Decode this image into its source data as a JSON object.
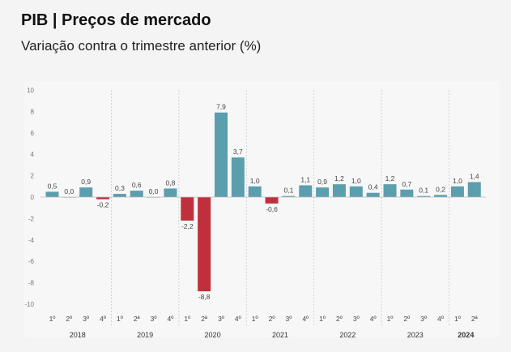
{
  "header": {
    "title": "PIB | Preços de mercado",
    "subtitle": "Variação contra o trimestre anterior (%)"
  },
  "chart_data": {
    "type": "bar",
    "title": "PIB | Preços de mercado",
    "subtitle": "Variação contra o trimestre anterior (%)",
    "ylim": [
      -10,
      10
    ],
    "yticks": [
      10,
      8,
      6,
      4,
      2,
      0,
      -2,
      -4,
      -6,
      -8,
      -10
    ],
    "grid": false,
    "colors": {
      "positive": "#5b9eae",
      "negative": "#c0303c"
    },
    "categories": [
      "1º",
      "2º",
      "3º",
      "4º",
      "1º",
      "2ª",
      "3º",
      "4º",
      "1º",
      "2ª",
      "3º",
      "4º",
      "1º",
      "2º",
      "3º",
      "4º",
      "1º",
      "2º",
      "3º",
      "4º",
      "1º",
      "2º",
      "3º",
      "4º",
      "1º",
      "2ª"
    ],
    "years": [
      {
        "label": "2018",
        "start": 0,
        "count": 4
      },
      {
        "label": "2019",
        "start": 4,
        "count": 4
      },
      {
        "label": "2020",
        "start": 8,
        "count": 4
      },
      {
        "label": "2021",
        "start": 12,
        "count": 4
      },
      {
        "label": "2022",
        "start": 16,
        "count": 4
      },
      {
        "label": "2023",
        "start": 20,
        "count": 4
      },
      {
        "label": "2024",
        "start": 24,
        "count": 2,
        "bold": true
      }
    ],
    "values": [
      0.5,
      0.0,
      0.9,
      -0.2,
      0.3,
      0.6,
      0.0,
      0.8,
      -2.2,
      -8.8,
      7.9,
      3.7,
      1.0,
      -0.6,
      0.1,
      1.1,
      0.9,
      1.2,
      1.0,
      0.4,
      1.2,
      0.7,
      0.1,
      0.2,
      1.0,
      1.4
    ],
    "value_labels": [
      "0,5",
      "0,0",
      "0,9",
      "-0,2",
      "0,3",
      "0,6",
      "0,0",
      "0,8",
      "-2,2",
      "-8,8",
      "7,9",
      "3,7",
      "1,0",
      "-0,6",
      "0,1",
      "1,1",
      "0,9",
      "1,2",
      "1,0",
      "0,4",
      "1,2",
      "0,7",
      "0,1",
      "0,2",
      "1,0",
      "1,4"
    ]
  }
}
